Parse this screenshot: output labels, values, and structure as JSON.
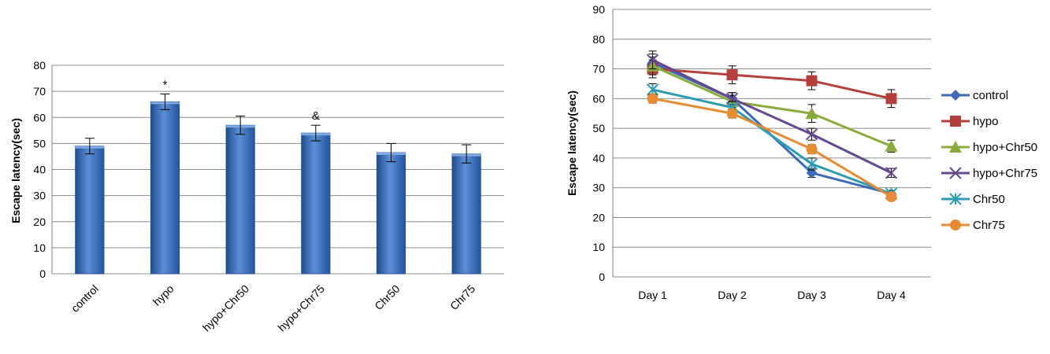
{
  "chart_data": [
    {
      "type": "bar",
      "ylabel": "Escape latency(sec)",
      "ylim": [
        0,
        80
      ],
      "yticks": [
        0,
        10,
        20,
        30,
        40,
        50,
        60,
        70,
        80
      ],
      "grid": true,
      "categories": [
        "control",
        "hypo",
        "hypo+Chr50",
        "hypo+Chr75",
        "Chr50",
        "Chr75"
      ],
      "values": [
        49,
        66,
        57,
        54,
        46.5,
        46
      ],
      "errors": [
        3,
        3,
        3.5,
        3,
        3.5,
        3.5
      ],
      "annotations": [
        {
          "category": "hypo",
          "text": "*"
        },
        {
          "category": "hypo+Chr75",
          "text": "&"
        }
      ],
      "colors": {
        "bar": "#4a7ec9",
        "bar_dark": "#1f4c8f",
        "grid": "#8c8c8c"
      }
    },
    {
      "type": "line",
      "ylabel": "Escape latency(sec)",
      "ylim": [
        0,
        90
      ],
      "yticks": [
        0,
        10,
        20,
        30,
        40,
        50,
        60,
        70,
        80,
        90
      ],
      "grid": true,
      "legend_position": "right",
      "categories": [
        "Day 1",
        "Day 2",
        "Day 3",
        "Day 4"
      ],
      "series": [
        {
          "name": "control",
          "values": [
            72,
            60,
            35,
            28
          ],
          "errors": [
            3,
            2,
            1.5,
            1
          ],
          "color": "#3c6ab4",
          "marker": "diamond"
        },
        {
          "name": "hypo",
          "values": [
            70,
            68,
            66,
            60
          ],
          "errors": [
            3,
            3,
            3,
            3
          ],
          "color": "#b3403c",
          "marker": "square"
        },
        {
          "name": "hypo+Chr50",
          "values": [
            71,
            59,
            55,
            44
          ],
          "errors": [
            3,
            2,
            3,
            2
          ],
          "color": "#8aac3e",
          "marker": "triangle"
        },
        {
          "name": "hypo+Chr75",
          "values": [
            73,
            60,
            48,
            35
          ],
          "errors": [
            3,
            2,
            2,
            1.5
          ],
          "color": "#65498f",
          "marker": "x"
        },
        {
          "name": "Chr50",
          "values": [
            63,
            57,
            38,
            28
          ],
          "errors": [
            2,
            2,
            2,
            1
          ],
          "color": "#2e9bb0",
          "marker": "star"
        },
        {
          "name": "Chr75",
          "values": [
            60,
            55,
            43,
            27
          ],
          "errors": [
            1.5,
            1.5,
            1.5,
            1
          ],
          "color": "#e48b34",
          "marker": "circle"
        }
      ]
    }
  ]
}
